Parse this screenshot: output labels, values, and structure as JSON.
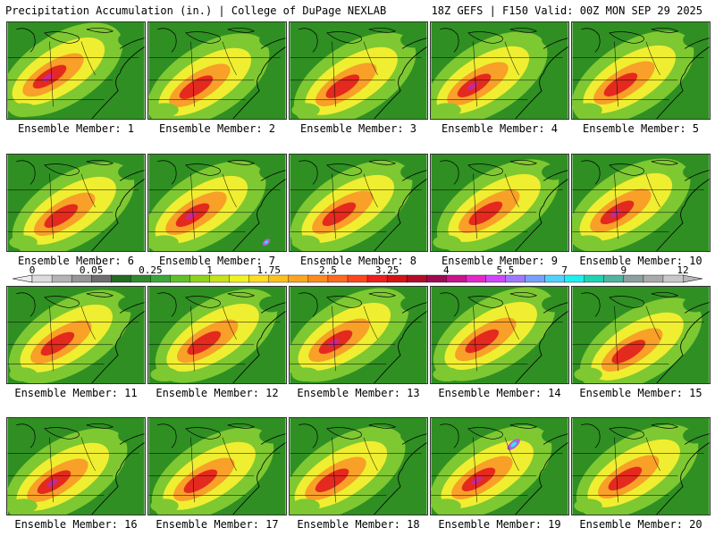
{
  "header": {
    "left": "Precipitation Accumulation (in.) | College of DuPage NEXLAB",
    "right": "18Z GEFS | F150 Valid: 00Z MON SEP 29 2025"
  },
  "members": [
    {
      "label": "Ensemble Member: 1"
    },
    {
      "label": "Ensemble Member: 2"
    },
    {
      "label": "Ensemble Member: 3"
    },
    {
      "label": "Ensemble Member: 4"
    },
    {
      "label": "Ensemble Member: 5"
    },
    {
      "label": "Ensemble Member: 6"
    },
    {
      "label": "Ensemble Member: 7"
    },
    {
      "label": "Ensemble Member: 8"
    },
    {
      "label": "Ensemble Member: 9"
    },
    {
      "label": "Ensemble Member: 10"
    },
    {
      "label": "Ensemble Member: 11"
    },
    {
      "label": "Ensemble Member: 12"
    },
    {
      "label": "Ensemble Member: 13"
    },
    {
      "label": "Ensemble Member: 14"
    },
    {
      "label": "Ensemble Member: 15"
    },
    {
      "label": "Ensemble Member: 16"
    },
    {
      "label": "Ensemble Member: 17"
    },
    {
      "label": "Ensemble Member: 18"
    },
    {
      "label": "Ensemble Member: 19"
    },
    {
      "label": "Ensemble Member: 20"
    }
  ],
  "colorbar": {
    "tick_labels": [
      "0",
      "0.05",
      "0.25",
      "1",
      "1.75",
      "2.5",
      "3.25",
      "4",
      "5.5",
      "7",
      "9",
      "12"
    ],
    "colors": [
      "#dcdcdc",
      "#b4b4b4",
      "#969696",
      "#6e6e6e",
      "#246b24",
      "#2f8a2f",
      "#3ca63c",
      "#5ec02a",
      "#8fd21c",
      "#c6e21a",
      "#f2f21e",
      "#ffdc1e",
      "#ffc01e",
      "#ffa51e",
      "#ff8a1e",
      "#ff6a1e",
      "#ff461e",
      "#f01e1e",
      "#d21414",
      "#b40c28",
      "#a00a50",
      "#c8148c",
      "#e628c8",
      "#d046ff",
      "#a078ff",
      "#78a0ff",
      "#50d2ff",
      "#1ef0f0",
      "#1ed2b4",
      "#50b4a0",
      "#8ca0a0",
      "#aaaaaa",
      "#c8c8c8"
    ]
  },
  "map_palette": {
    "ground": "#2f8f22",
    "light_green": "#7ec832",
    "yellow": "#f0ee30",
    "orange": "#f8a028",
    "red": "#e42a1e",
    "magenta": "#c82890",
    "purple": "#b060e0",
    "cyan": "#30e8f0",
    "boundary": "#000000"
  }
}
